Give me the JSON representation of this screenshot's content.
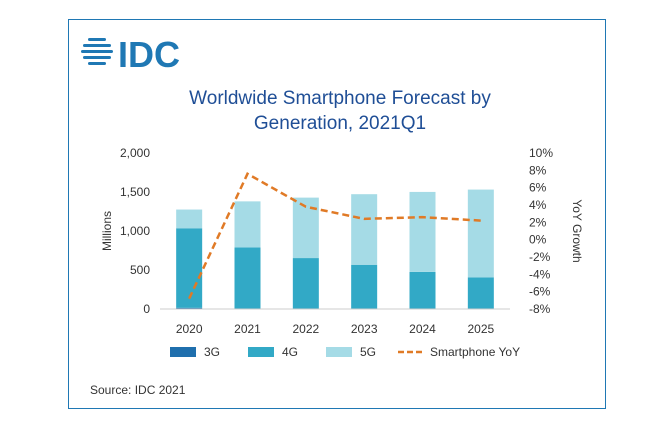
{
  "brand": {
    "name": "IDC",
    "color": "#1f78b4"
  },
  "title_lines": [
    "Worldwide Smartphone Forecast by",
    "Generation, 2021Q1"
  ],
  "source": "Source: IDC 2021",
  "colors": {
    "3G": "#1f6fad",
    "4G": "#32a9c6",
    "5G": "#a5dbe6",
    "yoy": "#e07a26",
    "axis": "#444444"
  },
  "chart_data": {
    "type": "bar",
    "stacked": true,
    "categories": [
      "2020",
      "2021",
      "2022",
      "2023",
      "2024",
      "2025"
    ],
    "series": [
      {
        "name": "3G",
        "values": [
          15,
          5,
          3,
          2,
          1,
          1
        ]
      },
      {
        "name": "4G",
        "values": [
          1020,
          785,
          650,
          565,
          475,
          405
        ]
      },
      {
        "name": "5G",
        "values": [
          240,
          590,
          775,
          905,
          1025,
          1125
        ]
      }
    ],
    "line_series": {
      "name": "Smartphone YoY",
      "axis": "right",
      "values": [
        -6.8,
        7.6,
        3.8,
        2.4,
        2.6,
        2.2
      ]
    },
    "ylabel": "Millions",
    "ylim": [
      0,
      2000
    ],
    "yticks": [
      "0",
      "500",
      "1,000",
      "1,500",
      "2,000"
    ],
    "ylabel_right": "YoY Growth",
    "ylim_right": [
      -8,
      10
    ],
    "yticks_right": [
      "-8%",
      "-6%",
      "-4%",
      "-2%",
      "0%",
      "2%",
      "4%",
      "6%",
      "8%",
      "10%"
    ],
    "legend": [
      "3G",
      "4G",
      "5G",
      "Smartphone YoY"
    ],
    "legend_position": "bottom",
    "grid": false
  }
}
